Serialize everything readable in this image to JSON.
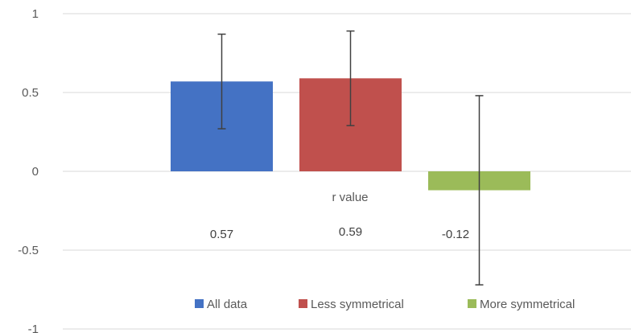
{
  "chart_data": {
    "type": "bar",
    "title": "",
    "xlabel": "r value",
    "ylabel": "",
    "ylim": [
      -1,
      1
    ],
    "yticks": [
      1,
      0.5,
      0,
      -0.5,
      -1
    ],
    "ytick_labels": [
      "1",
      "0.5",
      "0",
      "-0.5",
      "-1"
    ],
    "grid": true,
    "legend_position": "bottom",
    "series": [
      {
        "name": "All data",
        "value": 0.57,
        "label": "0.57",
        "error_low": 0.27,
        "error_high": 0.87,
        "color": "#4472C4"
      },
      {
        "name": "Less symmetrical",
        "value": 0.59,
        "label": "0.59",
        "error_low": 0.29,
        "error_high": 0.89,
        "color": "#C0504D"
      },
      {
        "name": "More symmetrical",
        "value": -0.12,
        "label": "-0.12",
        "error_low": -0.72,
        "error_high": 0.48,
        "color": "#9BBB59"
      }
    ]
  }
}
